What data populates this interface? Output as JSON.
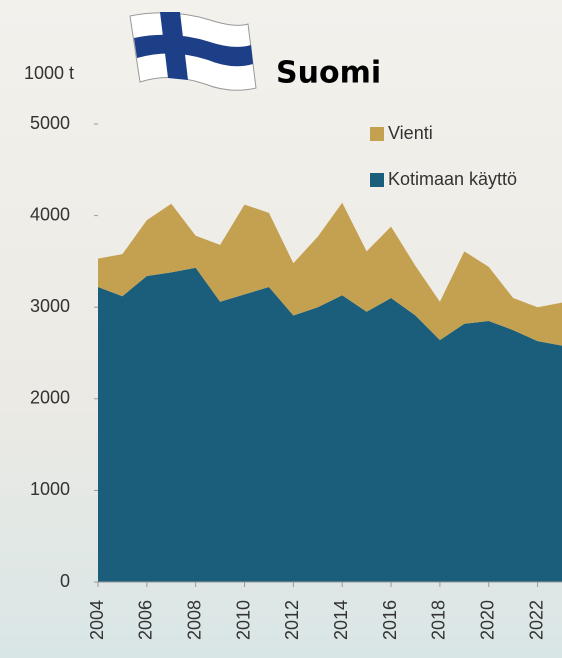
{
  "chart_data": {
    "type": "stacked_area",
    "title": "Suomi",
    "y_label": "1000 t",
    "x": [
      2004,
      2005,
      2006,
      2007,
      2008,
      2009,
      2010,
      2011,
      2012,
      2013,
      2014,
      2015,
      2016,
      2017,
      2018,
      2019,
      2020,
      2021,
      2022,
      2023
    ],
    "series": [
      {
        "name": "Kotimaan käyttö",
        "color": "#1b5e7b",
        "values": [
          3220,
          3120,
          3340,
          3380,
          3430,
          3060,
          3140,
          3220,
          2910,
          3000,
          3130,
          2950,
          3100,
          2910,
          2640,
          2820,
          2850,
          2750,
          2630,
          2580
        ]
      },
      {
        "name": "Vienti",
        "color": "#c4a150",
        "values": [
          310,
          460,
          610,
          750,
          350,
          620,
          980,
          810,
          570,
          770,
          1010,
          660,
          780,
          540,
          420,
          790,
          590,
          350,
          370,
          470
        ]
      }
    ],
    "xlim": [
      2004,
      2023
    ],
    "xticks": [
      2004,
      2006,
      2008,
      2010,
      2012,
      2014,
      2016,
      2018,
      2020,
      2022
    ],
    "ylim": [
      0,
      5000
    ],
    "yticks": [
      0,
      1000,
      2000,
      3000,
      4000,
      5000
    ]
  }
}
